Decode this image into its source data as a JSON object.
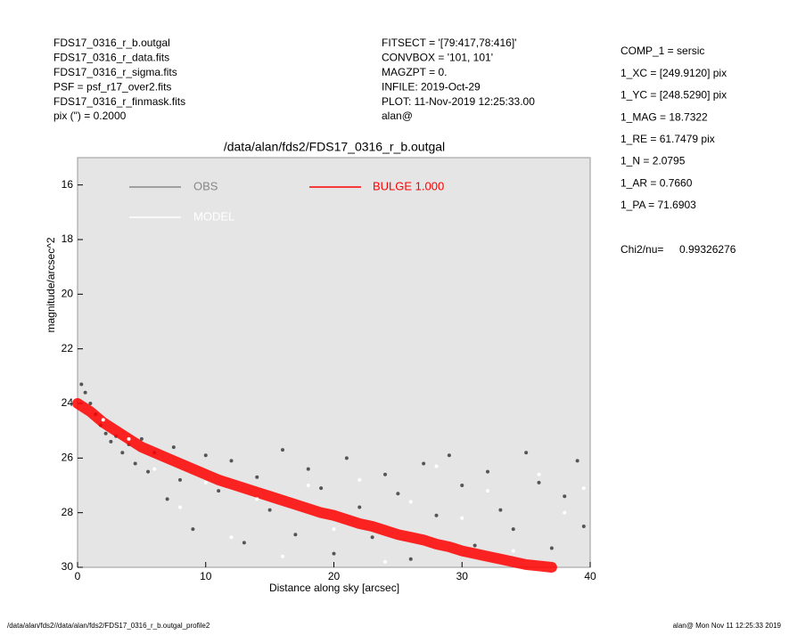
{
  "header_left": [
    "FDS17_0316_r_b.outgal",
    "FDS17_0316_r_data.fits",
    "FDS17_0316_r_sigma.fits",
    "PSF    = psf_r17_over2.fits",
    "FDS17_0316_r_finmask.fits",
    "pix (\") =  0.2000"
  ],
  "header_middle": [
    "FITSECT = '[79:417,78:416]'",
    "CONVBOX = '101, 101'",
    "MAGZPT  =              0.",
    "INFILE: 2019-Oct-29",
    "PLOT: 11-Nov-2019 12:25:33.00",
    "alan@"
  ],
  "parameters": [
    "COMP_1  = sersic",
    "1_XC    = [249.9120] pix",
    "1_YC    = [248.5290] pix",
    "1_MAG   = 18.7322",
    "1_RE    = 61.7479 pix",
    "1_N     = 2.0795",
    "1_AR    = 0.7660",
    "1_PA    = 71.6903"
  ],
  "chi2_label": "Chi2/nu=",
  "chi2_value": "0.99326276",
  "footer_left": "/data/alan/fds2//data/alan/fds2/FDS17_0316_r_b.outgal_profile2",
  "footer_right": "alan@  Mon Nov 11 12:25:33 2019",
  "chart_data": {
    "type": "scatter",
    "title": "/data/alan/fds2/FDS17_0316_r_b.outgal",
    "x_label": "Distance along sky [arcsec]",
    "y_label": "magnitude/arcsec^2",
    "xlim": [
      0,
      40
    ],
    "ylim": [
      30,
      15
    ],
    "xticks": [
      0,
      10,
      20,
      30,
      40
    ],
    "yticks": [
      16,
      18,
      20,
      22,
      24,
      26,
      28,
      30
    ],
    "background": "#e5e5e5",
    "series": [
      {
        "name": "OBS",
        "color": "#555555",
        "style": "points",
        "x": [
          0.3,
          0.6,
          1,
          1.4,
          1.8,
          2.2,
          2.6,
          3,
          3.5,
          4,
          4.5,
          5,
          5.5,
          6,
          7,
          7.5,
          8,
          9,
          10,
          11,
          12,
          13,
          14,
          15,
          16,
          17,
          18,
          19,
          20,
          21,
          22,
          23,
          24,
          25,
          26,
          27,
          28,
          29,
          30,
          31,
          32,
          33,
          34,
          35,
          36,
          37,
          38,
          39,
          39.5
        ],
        "values": [
          23.3,
          23.6,
          24.0,
          24.4,
          24.8,
          25.1,
          25.4,
          25.2,
          25.8,
          25.5,
          26.2,
          25.3,
          26.5,
          25.8,
          27.5,
          25.6,
          26.8,
          28.6,
          25.9,
          27.2,
          26.1,
          29.1,
          26.7,
          27.9,
          25.7,
          28.8,
          26.4,
          27.1,
          29.5,
          26.0,
          27.8,
          28.9,
          26.6,
          27.3,
          29.7,
          26.2,
          28.1,
          25.9,
          27.0,
          29.2,
          26.5,
          27.9,
          28.6,
          25.8,
          26.9,
          29.3,
          27.4,
          26.1,
          28.5
        ]
      },
      {
        "name": "BULGE  1.000",
        "color": "#ff0000",
        "style": "line",
        "x": [
          0,
          1,
          2,
          3,
          4,
          5,
          6,
          7,
          8,
          9,
          10,
          11,
          12,
          13,
          14,
          15,
          16,
          17,
          18,
          19,
          20,
          21,
          22,
          23,
          24,
          25,
          26,
          27,
          28,
          29,
          30,
          31,
          32,
          33,
          34,
          35,
          36,
          37
        ],
        "values": [
          24.0,
          24.3,
          24.7,
          25.0,
          25.3,
          25.6,
          25.8,
          26.0,
          26.2,
          26.4,
          26.6,
          26.8,
          26.95,
          27.1,
          27.25,
          27.4,
          27.55,
          27.7,
          27.85,
          28.0,
          28.1,
          28.25,
          28.4,
          28.5,
          28.65,
          28.8,
          28.9,
          29.0,
          29.15,
          29.25,
          29.4,
          29.5,
          29.6,
          29.7,
          29.8,
          29.9,
          29.95,
          30.0
        ]
      },
      {
        "name": "MODEL",
        "color": "#ffffff",
        "style": "points",
        "x": [
          2,
          4,
          6,
          8,
          10,
          12,
          14,
          16,
          18,
          20,
          22,
          24,
          26,
          28,
          30,
          32,
          34,
          36,
          38,
          39.5
        ],
        "values": [
          24.6,
          25.3,
          26.4,
          27.8,
          26.9,
          28.9,
          27.5,
          29.6,
          27.0,
          28.6,
          26.8,
          29.8,
          27.6,
          26.3,
          28.2,
          27.2,
          29.4,
          26.6,
          28.0,
          27.1
        ]
      }
    ]
  }
}
